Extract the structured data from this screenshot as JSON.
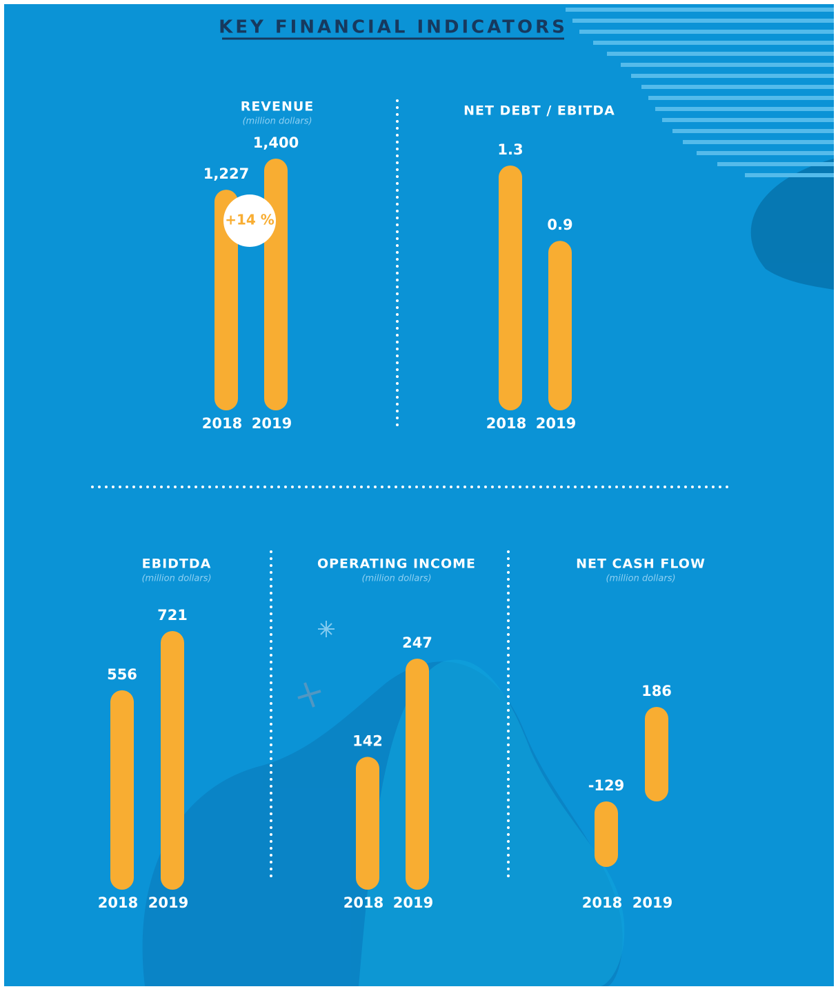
{
  "title": "KEY FINANCIAL INDICATORS",
  "chart_data": [
    {
      "type": "bar",
      "title": "REVENUE",
      "subtitle": "(million dollars)",
      "categories": [
        "2018",
        "2019"
      ],
      "values": [
        1227,
        1400
      ],
      "value_labels": [
        "1,227",
        "1,400"
      ],
      "annotation": "+14 %",
      "color": "#f8ad32"
    },
    {
      "type": "bar",
      "title": "NET DEBT / EBITDA",
      "categories": [
        "2018",
        "2019"
      ],
      "values": [
        1.3,
        0.9
      ],
      "color": "#f8ad32"
    },
    {
      "type": "bar",
      "title": "EBIDTDA",
      "subtitle": "(million dollars)",
      "categories": [
        "2018",
        "2019"
      ],
      "values": [
        556,
        721
      ],
      "color": "#f8ad32"
    },
    {
      "type": "bar",
      "title": "OPERATING INCOME",
      "subtitle": "(million dollars)",
      "categories": [
        "2018",
        "2019"
      ],
      "values": [
        142,
        247
      ],
      "color": "#f8ad32"
    },
    {
      "type": "bar",
      "title": "NET CASH FLOW",
      "subtitle": "(million dollars)",
      "categories": [
        "2018",
        "2019"
      ],
      "values": [
        -129,
        186
      ],
      "color": "#f8ad32"
    }
  ]
}
